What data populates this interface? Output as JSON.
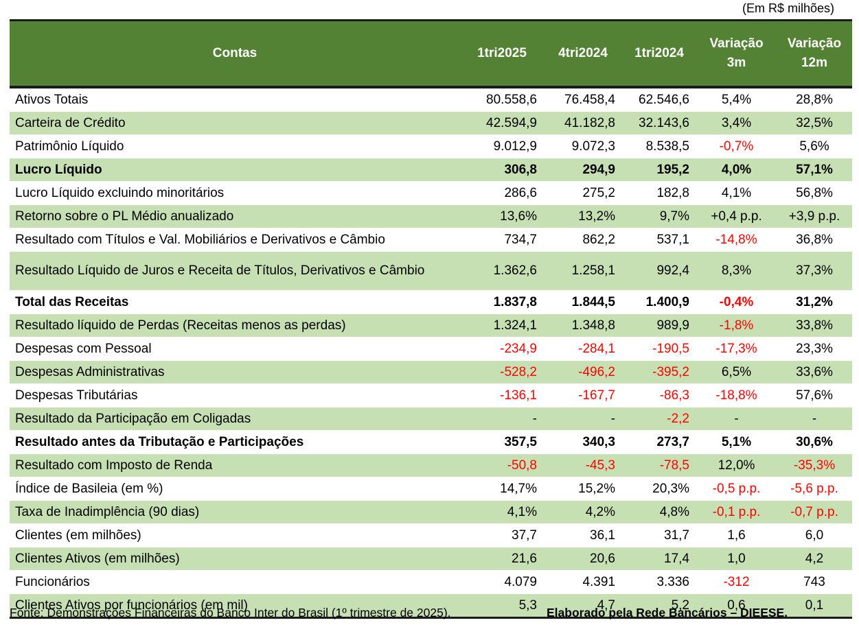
{
  "unit_note": "(Em R$ milhões)",
  "headers": {
    "contas": "Contas",
    "col1": "1tri2025",
    "col2": "4tri2024",
    "col3": "1tri2024",
    "var3m_line1": "Variação",
    "var3m_line2": "3m",
    "var12m_line1": "Variação",
    "var12m_line2": "12m"
  },
  "colors": {
    "header_bg": "#548235",
    "stripe_bg": "#c6e0b4",
    "negative": "#ff0000"
  },
  "rows": [
    {
      "label": "Ativos Totais",
      "v1": "80.558,6",
      "v2": "76.458,4",
      "v3": "62.546,6",
      "var3m": "5,4%",
      "var12m": "28,8%"
    },
    {
      "label": "Carteira de Crédito",
      "v1": "42.594,9",
      "v2": "41.182,8",
      "v3": "32.143,6",
      "var3m": "3,4%",
      "var12m": "32,5%"
    },
    {
      "label": "Patrimônio Líquido",
      "v1": "9.012,9",
      "v2": "9.072,3",
      "v3": "8.538,5",
      "var3m": "-0,7%",
      "var12m": "5,6%"
    },
    {
      "label": "Lucro Líquido",
      "v1": "306,8",
      "v2": "294,9",
      "v3": "195,2",
      "var3m": "4,0%",
      "var12m": "57,1%"
    },
    {
      "label": "Lucro Líquido excluindo minoritários",
      "v1": "286,6",
      "v2": "275,2",
      "v3": "182,8",
      "var3m": "4,1%",
      "var12m": "56,8%"
    },
    {
      "label": "Retorno sobre o PL Médio anualizado",
      "v1": "13,6%",
      "v2": "13,2%",
      "v3": "9,7%",
      "var3m": "+0,4 p.p.",
      "var12m": "+3,9 p.p."
    },
    {
      "label": "Resultado com Títulos e Val. Mobiliários e Derivativos e Câmbio",
      "v1": "734,7",
      "v2": "862,2",
      "v3": "537,1",
      "var3m": "-14,8%",
      "var12m": "36,8%"
    },
    {
      "label": "Resultado Líquido de Juros e Receita de Títulos, Derivativos e Câmbio",
      "v1": "1.362,6",
      "v2": "1.258,1",
      "v3": "992,4",
      "var3m": "8,3%",
      "var12m": "37,3%"
    },
    {
      "label": "Total das Receitas",
      "v1": "1.837,8",
      "v2": "1.844,5",
      "v3": "1.400,9",
      "var3m": "-0,4%",
      "var12m": "31,2%"
    },
    {
      "label": "Resultado líquido de Perdas (Receitas menos as perdas)",
      "v1": "1.324,1",
      "v2": "1.348,8",
      "v3": "989,9",
      "var3m": "-1,8%",
      "var12m": "33,8%"
    },
    {
      "label": "Despesas com Pessoal",
      "v1": "-234,9",
      "v2": "-284,1",
      "v3": "-190,5",
      "var3m": "-17,3%",
      "var12m": "23,3%"
    },
    {
      "label": "Despesas Administrativas",
      "v1": "-528,2",
      "v2": "-496,2",
      "v3": "-395,2",
      "var3m": "6,5%",
      "var12m": "33,6%"
    },
    {
      "label": "Despesas Tributárias",
      "v1": "-136,1",
      "v2": "-167,7",
      "v3": "-86,3",
      "var3m": "-18,8%",
      "var12m": "57,6%"
    },
    {
      "label": "Resultado da Participação em Coligadas",
      "v1": "-",
      "v2": "-",
      "v3": "-2,2",
      "var3m": "-",
      "var12m": "-"
    },
    {
      "label": "Resultado antes da Tributação e Participações",
      "v1": "357,5",
      "v2": "340,3",
      "v3": "273,7",
      "var3m": "5,1%",
      "var12m": "30,6%"
    },
    {
      "label": "Resultado com Imposto de Renda",
      "v1": "-50,8",
      "v2": "-45,3",
      "v3": "-78,5",
      "var3m": "12,0%",
      "var12m": "-35,3%"
    },
    {
      "label": "Índice de Basileia (em %)",
      "v1": "14,7%",
      "v2": "15,2%",
      "v3": "20,3%",
      "var3m": "-0,5 p.p.",
      "var12m": "-5,6 p.p."
    },
    {
      "label": "Taxa de Inadimplência (90 dias)",
      "v1": "4,1%",
      "v2": "4,2%",
      "v3": "4,8%",
      "var3m": "-0,1 p.p.",
      "var12m": "-0,7 p.p."
    },
    {
      "label": "Clientes (em milhões)",
      "v1": "37,7",
      "v2": "36,1",
      "v3": "31,7",
      "var3m": "1,6",
      "var12m": "6,0"
    },
    {
      "label": "Clientes Ativos (em milhões)",
      "v1": "21,6",
      "v2": "20,6",
      "v3": "17,4",
      "var3m": "1,0",
      "var12m": "4,2"
    },
    {
      "label": "Funcionários",
      "v1": "4.079",
      "v2": "4.391",
      "v3": "3.336",
      "var3m": "-312",
      "var12m": "743"
    },
    {
      "label": "Clientes Ativos por funcionários (em mil)",
      "v1": "5,3",
      "v2": "4,7",
      "v3": "5,2",
      "var3m": "0,6",
      "var12m": "0,1"
    }
  ],
  "footer": {
    "source": "Fonte: Demonstrações Financeiras do Banco Inter do Brasil (1º trimestre de 2025).",
    "author": "Elaborado pela Rede Bancários – DIEESE."
  }
}
